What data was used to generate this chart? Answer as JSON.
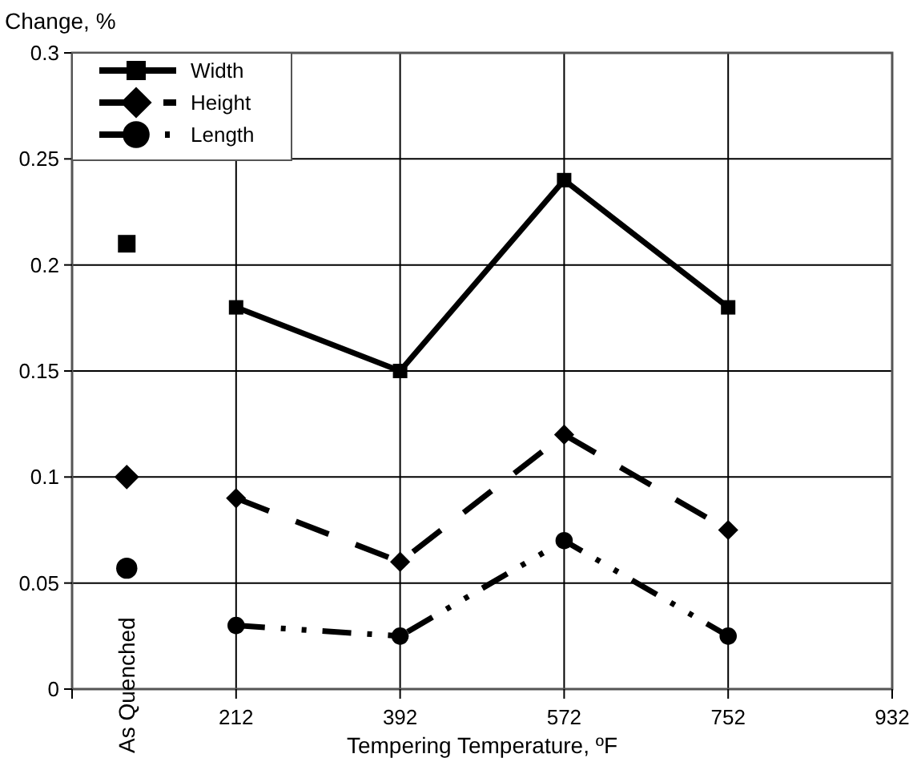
{
  "chart_data": {
    "type": "line",
    "ylabel": "Change, %",
    "xlabel": "Tempering Temperature, ºF",
    "xlim": [
      32,
      932
    ],
    "xticks": [
      212,
      392,
      572,
      752,
      932
    ],
    "ylim": [
      0,
      0.3
    ],
    "yticks": [
      0,
      0.05,
      0.1,
      0.15,
      0.2,
      0.25,
      0.3
    ],
    "grid": true,
    "legend": "top left",
    "annotations": [
      "As Quenched"
    ],
    "series": [
      {
        "name": "Width",
        "color": "#000000",
        "marker": "square",
        "line_style": "solid",
        "x": [
          212,
          392,
          572,
          752
        ],
        "values": [
          0.18,
          0.15,
          0.24,
          0.18
        ]
      },
      {
        "name": "Height",
        "color": "#000000",
        "marker": "diamond",
        "line_style": "dashed",
        "x": [
          212,
          392,
          572,
          752
        ],
        "values": [
          0.09,
          0.06,
          0.12,
          0.075
        ]
      },
      {
        "name": "Length",
        "color": "#000000",
        "marker": "circle",
        "line_style": "dashdot",
        "x": [
          212,
          392,
          572,
          752
        ],
        "values": [
          0.03,
          0.025,
          0.07,
          0.025
        ]
      },
      {
        "type": "scatter",
        "color": "#000000",
        "marker": "square",
        "x": [
          92
        ],
        "values": [
          0.21
        ]
      },
      {
        "type": "scatter",
        "color": "#000000",
        "marker": "diamond",
        "x": [
          92
        ],
        "values": [
          0.1
        ]
      },
      {
        "type": "scatter",
        "color": "#000000",
        "marker": "circle",
        "x": [
          92
        ],
        "values": [
          0.057
        ]
      }
    ]
  }
}
